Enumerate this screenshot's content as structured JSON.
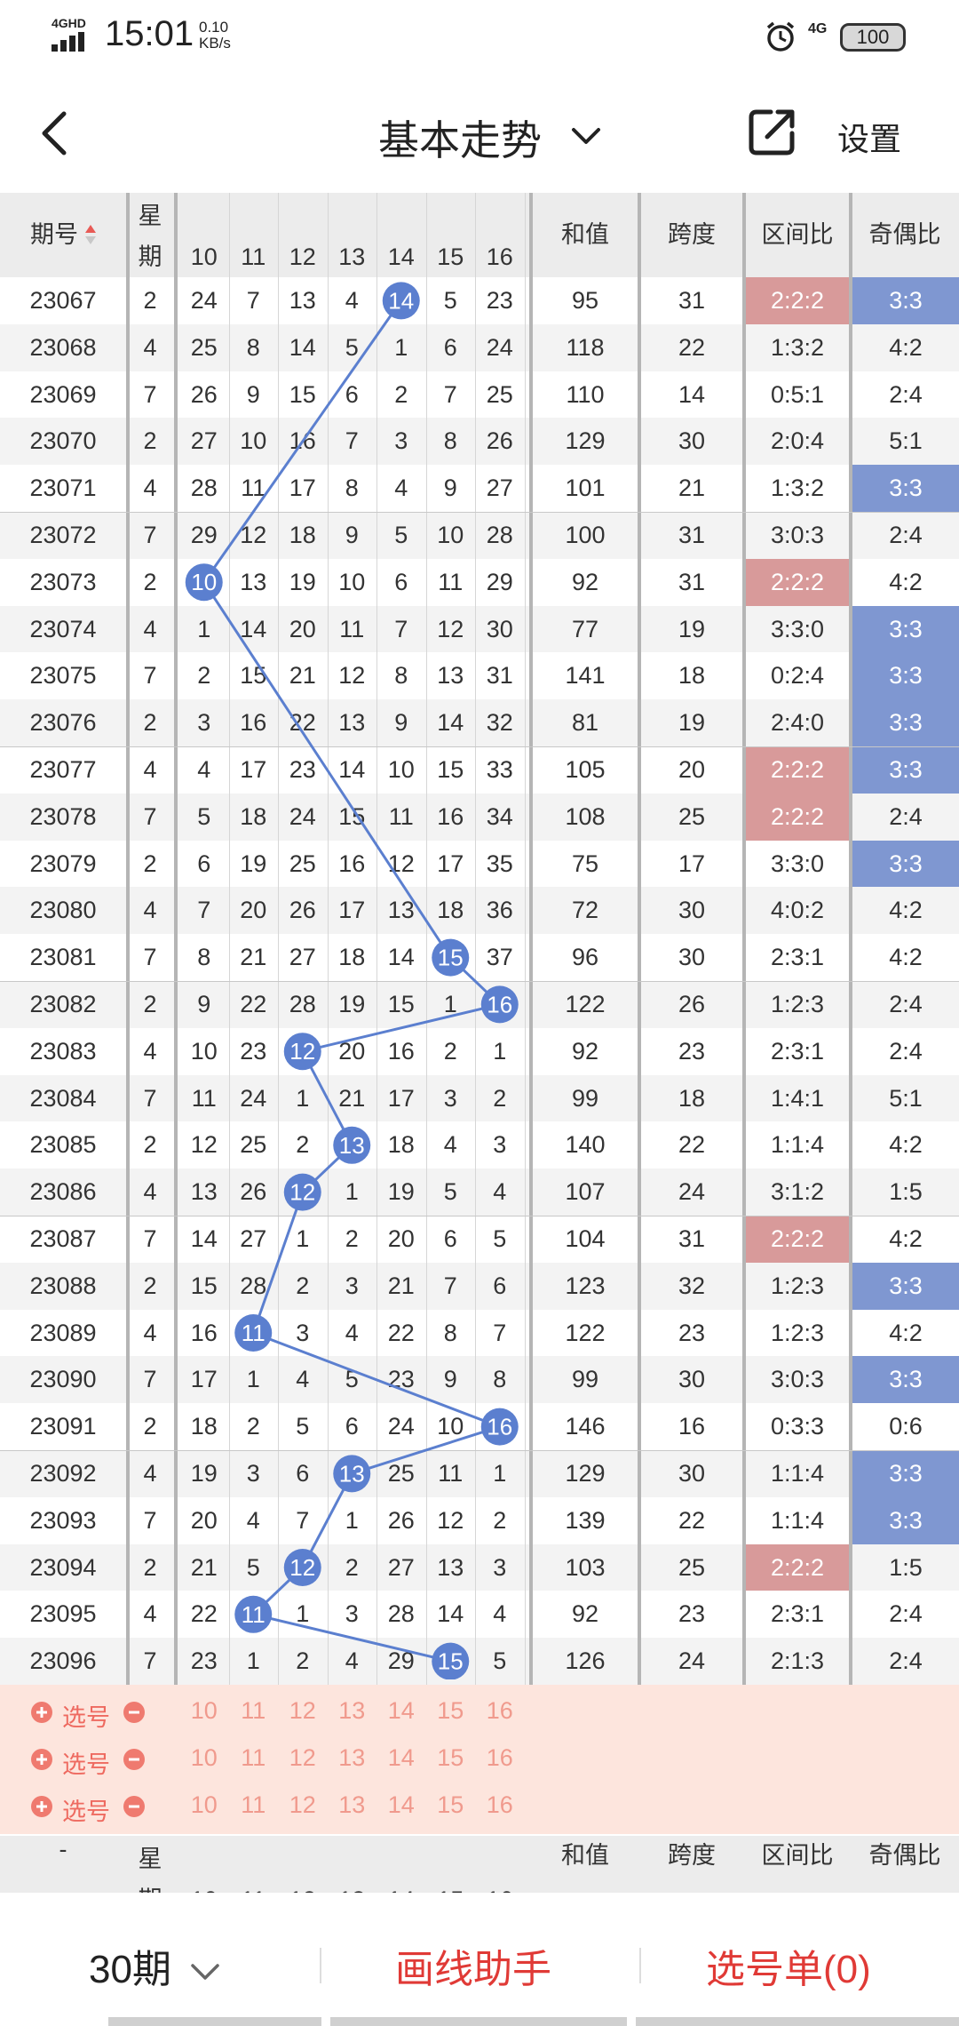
{
  "status": {
    "network": "4GHD",
    "time": "15:01",
    "speed_value": "0.10",
    "speed_unit": "KB/s",
    "net2": "4G",
    "battery": "100"
  },
  "header": {
    "title": "基本走势",
    "settings": "设置"
  },
  "table": {
    "headers": {
      "period": "期号",
      "week": "星期",
      "sum": "和值",
      "span": "跨度",
      "range_ratio": "区间比",
      "odd_even_ratio": "奇偶比"
    },
    "number_columns": [
      "10",
      "11",
      "12",
      "13",
      "14",
      "15",
      "16"
    ],
    "rows": [
      {
        "period": "23067",
        "week": "2",
        "nums": [
          "24",
          "7",
          "13",
          "4",
          "14",
          "5",
          "23"
        ],
        "sum": "95",
        "span": "31",
        "range": "2:2:2",
        "oe": "3:3",
        "range_hi": "red",
        "oe_hi": "blue",
        "ball": 4
      },
      {
        "period": "23068",
        "week": "4",
        "nums": [
          "25",
          "8",
          "14",
          "5",
          "1",
          "6",
          "24"
        ],
        "sum": "118",
        "span": "22",
        "range": "1:3:2",
        "oe": "4:2",
        "range_hi": "",
        "oe_hi": "",
        "ball": -1
      },
      {
        "period": "23069",
        "week": "7",
        "nums": [
          "26",
          "9",
          "15",
          "6",
          "2",
          "7",
          "25"
        ],
        "sum": "110",
        "span": "14",
        "range": "0:5:1",
        "oe": "2:4",
        "range_hi": "",
        "oe_hi": "",
        "ball": -1
      },
      {
        "period": "23070",
        "week": "2",
        "nums": [
          "27",
          "10",
          "16",
          "7",
          "3",
          "8",
          "26"
        ],
        "sum": "129",
        "span": "30",
        "range": "2:0:4",
        "oe": "5:1",
        "range_hi": "",
        "oe_hi": "",
        "ball": -1
      },
      {
        "period": "23071",
        "week": "4",
        "nums": [
          "28",
          "11",
          "17",
          "8",
          "4",
          "9",
          "27"
        ],
        "sum": "101",
        "span": "21",
        "range": "1:3:2",
        "oe": "3:3",
        "range_hi": "",
        "oe_hi": "blue",
        "ball": -1
      },
      {
        "period": "23072",
        "week": "7",
        "nums": [
          "29",
          "12",
          "18",
          "9",
          "5",
          "10",
          "28"
        ],
        "sum": "100",
        "span": "31",
        "range": "3:0:3",
        "oe": "2:4",
        "range_hi": "",
        "oe_hi": "",
        "ball": -1
      },
      {
        "period": "23073",
        "week": "2",
        "nums": [
          "10",
          "13",
          "19",
          "10",
          "6",
          "11",
          "29"
        ],
        "sum": "92",
        "span": "31",
        "range": "2:2:2",
        "oe": "4:2",
        "range_hi": "red",
        "oe_hi": "",
        "ball": 0
      },
      {
        "period": "23074",
        "week": "4",
        "nums": [
          "1",
          "14",
          "20",
          "11",
          "7",
          "12",
          "30"
        ],
        "sum": "77",
        "span": "19",
        "range": "3:3:0",
        "oe": "3:3",
        "range_hi": "",
        "oe_hi": "blue",
        "ball": -1
      },
      {
        "period": "23075",
        "week": "7",
        "nums": [
          "2",
          "15",
          "21",
          "12",
          "8",
          "13",
          "31"
        ],
        "sum": "141",
        "span": "18",
        "range": "0:2:4",
        "oe": "3:3",
        "range_hi": "",
        "oe_hi": "blue",
        "ball": -1
      },
      {
        "period": "23076",
        "week": "2",
        "nums": [
          "3",
          "16",
          "22",
          "13",
          "9",
          "14",
          "32"
        ],
        "sum": "81",
        "span": "19",
        "range": "2:4:0",
        "oe": "3:3",
        "range_hi": "",
        "oe_hi": "blue",
        "ball": -1
      },
      {
        "period": "23077",
        "week": "4",
        "nums": [
          "4",
          "17",
          "23",
          "14",
          "10",
          "15",
          "33"
        ],
        "sum": "105",
        "span": "20",
        "range": "2:2:2",
        "oe": "3:3",
        "range_hi": "red",
        "oe_hi": "blue",
        "ball": -1
      },
      {
        "period": "23078",
        "week": "7",
        "nums": [
          "5",
          "18",
          "24",
          "15",
          "11",
          "16",
          "34"
        ],
        "sum": "108",
        "span": "25",
        "range": "2:2:2",
        "oe": "2:4",
        "range_hi": "red",
        "oe_hi": "",
        "ball": -1
      },
      {
        "period": "23079",
        "week": "2",
        "nums": [
          "6",
          "19",
          "25",
          "16",
          "12",
          "17",
          "35"
        ],
        "sum": "75",
        "span": "17",
        "range": "3:3:0",
        "oe": "3:3",
        "range_hi": "",
        "oe_hi": "blue",
        "ball": -1
      },
      {
        "period": "23080",
        "week": "4",
        "nums": [
          "7",
          "20",
          "26",
          "17",
          "13",
          "18",
          "36"
        ],
        "sum": "72",
        "span": "30",
        "range": "4:0:2",
        "oe": "4:2",
        "range_hi": "",
        "oe_hi": "",
        "ball": -1
      },
      {
        "period": "23081",
        "week": "7",
        "nums": [
          "8",
          "21",
          "27",
          "18",
          "14",
          "15",
          "37"
        ],
        "sum": "96",
        "span": "30",
        "range": "2:3:1",
        "oe": "4:2",
        "range_hi": "",
        "oe_hi": "",
        "ball": 5
      },
      {
        "period": "23082",
        "week": "2",
        "nums": [
          "9",
          "22",
          "28",
          "19",
          "15",
          "1",
          "16"
        ],
        "sum": "122",
        "span": "26",
        "range": "1:2:3",
        "oe": "2:4",
        "range_hi": "",
        "oe_hi": "",
        "ball": 6
      },
      {
        "period": "23083",
        "week": "4",
        "nums": [
          "10",
          "23",
          "12",
          "20",
          "16",
          "2",
          "1"
        ],
        "sum": "92",
        "span": "23",
        "range": "2:3:1",
        "oe": "2:4",
        "range_hi": "",
        "oe_hi": "",
        "ball": 2
      },
      {
        "period": "23084",
        "week": "7",
        "nums": [
          "11",
          "24",
          "1",
          "21",
          "17",
          "3",
          "2"
        ],
        "sum": "99",
        "span": "18",
        "range": "1:4:1",
        "oe": "5:1",
        "range_hi": "",
        "oe_hi": "",
        "ball": -1
      },
      {
        "period": "23085",
        "week": "2",
        "nums": [
          "12",
          "25",
          "2",
          "13",
          "18",
          "4",
          "3"
        ],
        "sum": "140",
        "span": "22",
        "range": "1:1:4",
        "oe": "4:2",
        "range_hi": "",
        "oe_hi": "",
        "ball": 3
      },
      {
        "period": "23086",
        "week": "4",
        "nums": [
          "13",
          "26",
          "12",
          "1",
          "19",
          "5",
          "4"
        ],
        "sum": "107",
        "span": "24",
        "range": "3:1:2",
        "oe": "1:5",
        "range_hi": "",
        "oe_hi": "",
        "ball": 2
      },
      {
        "period": "23087",
        "week": "7",
        "nums": [
          "14",
          "27",
          "1",
          "2",
          "20",
          "6",
          "5"
        ],
        "sum": "104",
        "span": "31",
        "range": "2:2:2",
        "oe": "4:2",
        "range_hi": "red",
        "oe_hi": "",
        "ball": -1
      },
      {
        "period": "23088",
        "week": "2",
        "nums": [
          "15",
          "28",
          "2",
          "3",
          "21",
          "7",
          "6"
        ],
        "sum": "123",
        "span": "32",
        "range": "1:2:3",
        "oe": "3:3",
        "range_hi": "",
        "oe_hi": "blue",
        "ball": -1
      },
      {
        "period": "23089",
        "week": "4",
        "nums": [
          "16",
          "11",
          "3",
          "4",
          "22",
          "8",
          "7"
        ],
        "sum": "122",
        "span": "23",
        "range": "1:2:3",
        "oe": "4:2",
        "range_hi": "",
        "oe_hi": "",
        "ball": 1
      },
      {
        "period": "23090",
        "week": "7",
        "nums": [
          "17",
          "1",
          "4",
          "5",
          "23",
          "9",
          "8"
        ],
        "sum": "99",
        "span": "30",
        "range": "3:0:3",
        "oe": "3:3",
        "range_hi": "",
        "oe_hi": "blue",
        "ball": -1
      },
      {
        "period": "23091",
        "week": "2",
        "nums": [
          "18",
          "2",
          "5",
          "6",
          "24",
          "10",
          "16"
        ],
        "sum": "146",
        "span": "16",
        "range": "0:3:3",
        "oe": "0:6",
        "range_hi": "",
        "oe_hi": "",
        "ball": 6
      },
      {
        "period": "23092",
        "week": "4",
        "nums": [
          "19",
          "3",
          "6",
          "13",
          "25",
          "11",
          "1"
        ],
        "sum": "129",
        "span": "30",
        "range": "1:1:4",
        "oe": "3:3",
        "range_hi": "",
        "oe_hi": "blue",
        "ball": 3
      },
      {
        "period": "23093",
        "week": "7",
        "nums": [
          "20",
          "4",
          "7",
          "1",
          "26",
          "12",
          "2"
        ],
        "sum": "139",
        "span": "22",
        "range": "1:1:4",
        "oe": "3:3",
        "range_hi": "",
        "oe_hi": "blue",
        "ball": -1
      },
      {
        "period": "23094",
        "week": "2",
        "nums": [
          "21",
          "5",
          "12",
          "2",
          "27",
          "13",
          "3"
        ],
        "sum": "103",
        "span": "25",
        "range": "2:2:2",
        "oe": "1:5",
        "range_hi": "red",
        "oe_hi": "",
        "ball": 2
      },
      {
        "period": "23095",
        "week": "4",
        "nums": [
          "22",
          "11",
          "1",
          "3",
          "28",
          "14",
          "4"
        ],
        "sum": "92",
        "span": "23",
        "range": "2:3:1",
        "oe": "2:4",
        "range_hi": "",
        "oe_hi": "",
        "ball": 1
      },
      {
        "period": "23096",
        "week": "7",
        "nums": [
          "23",
          "1",
          "2",
          "4",
          "29",
          "15",
          "5"
        ],
        "sum": "126",
        "span": "24",
        "range": "2:1:3",
        "oe": "2:4",
        "range_hi": "",
        "oe_hi": "",
        "ball": 5
      }
    ],
    "pick_label": "选号",
    "pick_rows": 3,
    "footer_period": "-"
  },
  "bottom": {
    "period_select": "30期",
    "draw_helper": "画线助手",
    "pick_list": "选号单(0)"
  },
  "colors": {
    "ball": "#5b7fcf",
    "line": "#5b7fcf",
    "accent_red": "#e03a36",
    "range_hi": "#d89a9a",
    "oe_hi": "#7f97d1",
    "pick_bg": "#fde5dd"
  }
}
